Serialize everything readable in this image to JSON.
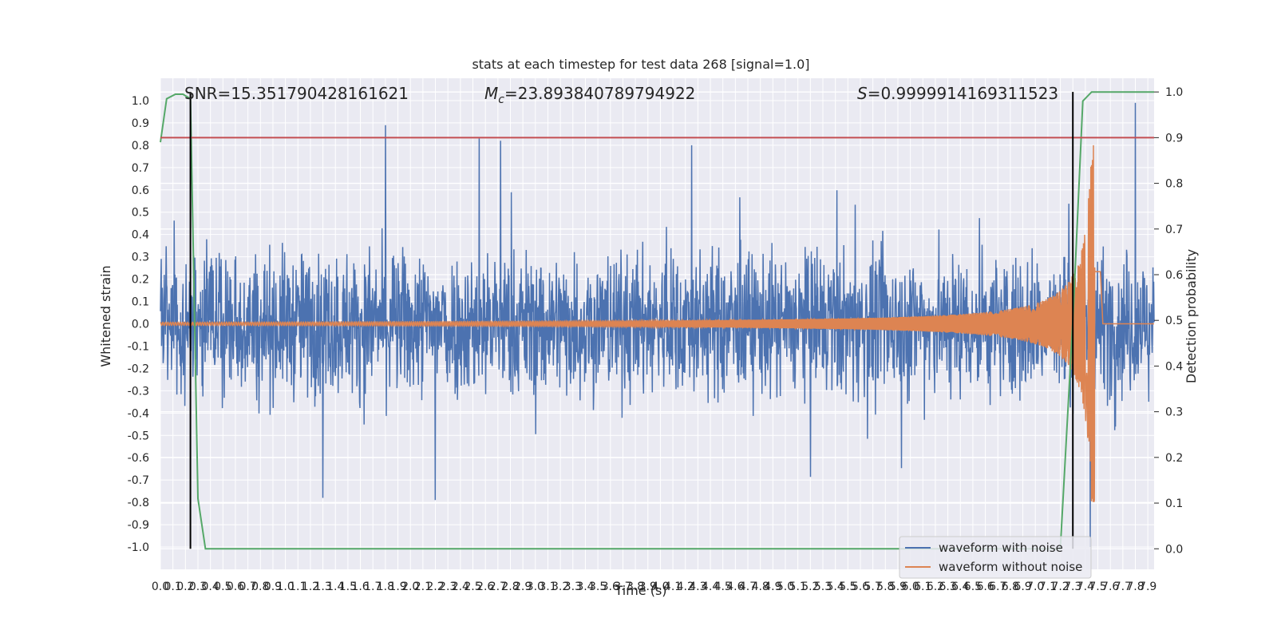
{
  "chart_data": {
    "type": "line",
    "title": "stats at each timestep for test data 268 [signal=1.0]",
    "xlabel": "Time (s)",
    "ylabel": "Whitened strain",
    "y2label": "Detection probability",
    "xlim": [
      0.0,
      7.95
    ],
    "ylim": [
      -1.1,
      1.1
    ],
    "y2lim": [
      -0.045,
      1.03
    ],
    "x_ticks": [
      0.0,
      0.1,
      0.2,
      0.3,
      0.4,
      0.5,
      0.6,
      0.7,
      0.8,
      0.9,
      1.0,
      1.1,
      1.2,
      1.3,
      1.4,
      1.5,
      1.6,
      1.7,
      1.8,
      1.9,
      2.0,
      2.1,
      2.2,
      2.3,
      2.4,
      2.5,
      2.6,
      2.7,
      2.8,
      2.9,
      3.0,
      3.1,
      3.2,
      3.3,
      3.4,
      3.5,
      3.6,
      3.7,
      3.8,
      3.9,
      4.0,
      4.1,
      4.2,
      4.3,
      4.4,
      4.5,
      4.6,
      4.7,
      4.8,
      4.9,
      5.0,
      5.1,
      5.2,
      5.3,
      5.4,
      5.5,
      5.6,
      5.7,
      5.8,
      5.9,
      6.0,
      6.1,
      6.2,
      6.3,
      6.4,
      6.5,
      6.6,
      6.7,
      6.8,
      6.9,
      7.0,
      7.1,
      7.2,
      7.3,
      7.4,
      7.5,
      7.6,
      7.7,
      7.8,
      7.9
    ],
    "y_ticks": [
      -1.0,
      -0.9,
      -0.8,
      -0.7,
      -0.6,
      -0.5,
      -0.4,
      -0.3,
      -0.2,
      -0.1,
      0.0,
      0.1,
      0.2,
      0.3,
      0.4,
      0.5,
      0.6,
      0.7,
      0.8,
      0.9,
      1.0
    ],
    "y2_ticks": [
      0.0,
      0.1,
      0.2,
      0.3,
      0.4,
      0.5,
      0.6,
      0.7,
      0.8,
      0.9,
      1.0
    ],
    "annotations": {
      "snr": "SNR=15.351790428161621",
      "mc_symbol": "M",
      "mc_sub": "c",
      "mc_value": "=23.893840789794922",
      "s_symbol": "S",
      "s_value": "=0.9999914169311523"
    },
    "threshold_y2": 0.9,
    "vlines_x": [
      0.24,
      7.3
    ],
    "detection_probability": {
      "x": [
        0.0,
        0.05,
        0.12,
        0.18,
        0.24,
        0.3,
        0.36,
        7.2,
        7.3,
        7.38,
        7.45,
        7.95
      ],
      "y": [
        0.89,
        0.985,
        0.995,
        0.995,
        0.985,
        0.11,
        0.0,
        0.0,
        0.5,
        0.98,
        1.0,
        1.0
      ]
    },
    "noise_envelope": {
      "max_abs_amplitude": 1.0,
      "typical_band": 0.35,
      "peaks": [
        {
          "x": 1.8,
          "y": 0.89
        },
        {
          "x": 2.55,
          "y": 0.83
        },
        {
          "x": 2.72,
          "y": 0.82
        },
        {
          "x": 4.25,
          "y": 0.8
        },
        {
          "x": 7.8,
          "y": 0.99
        },
        {
          "x": 7.44,
          "y": -1.0
        },
        {
          "x": 2.2,
          "y": -0.79
        },
        {
          "x": 1.3,
          "y": -0.78
        }
      ]
    },
    "chirp": {
      "start_amplitude": 0.007,
      "peak_amplitude": 0.8,
      "peak_time": 7.48,
      "end_time": 7.52
    },
    "series": [
      {
        "name": "waveform with noise",
        "color": "#4c72b0"
      },
      {
        "name": "waveform without noise",
        "color": "#dd8452"
      },
      {
        "color": "#55a868"
      },
      {
        "color": "#c44e52"
      }
    ],
    "legend_location": "lower-right",
    "grid": true
  }
}
